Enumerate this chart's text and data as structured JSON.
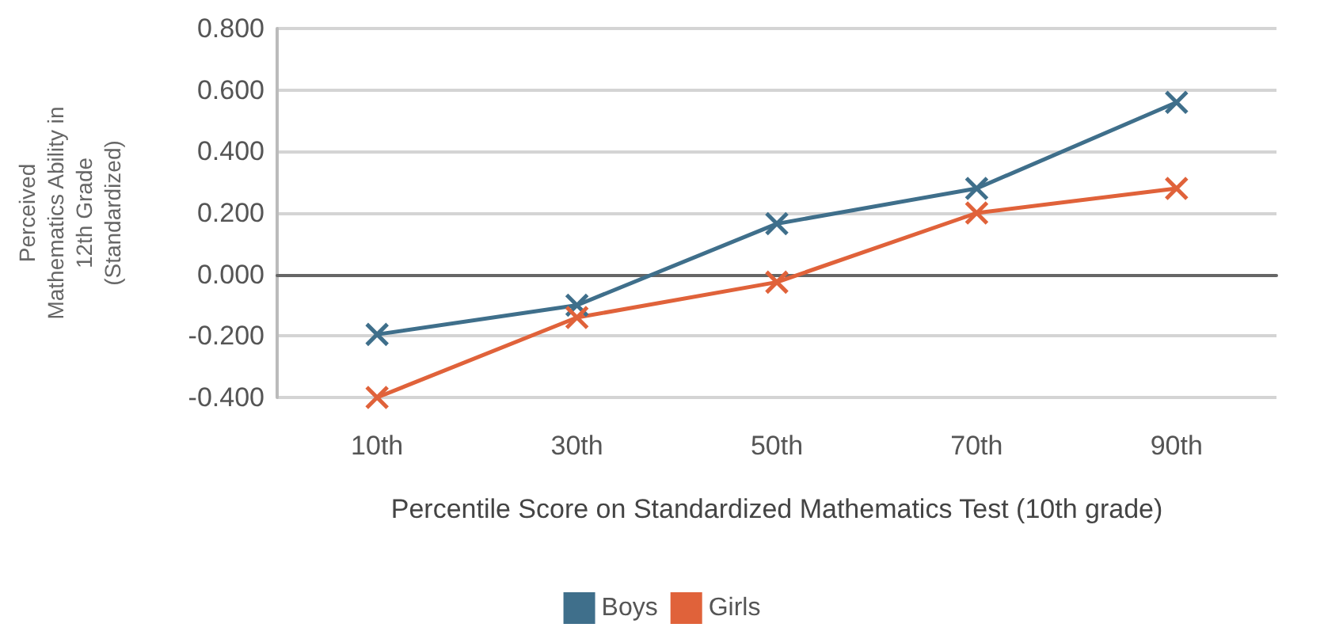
{
  "chart_data": {
    "type": "line",
    "xlabel": "Percentile Score on Standardized Mathematics Test (10th grade)",
    "ylabel": "Perceived\nMathematics Ability in\n12th Grade\n(Standardized)",
    "categories": [
      "10th",
      "30th",
      "50th",
      "70th",
      "90th"
    ],
    "series": [
      {
        "name": "Boys",
        "color": "#3f6f8b",
        "values": [
          -0.195,
          -0.1,
          0.165,
          0.28,
          0.56
        ]
      },
      {
        "name": "Girls",
        "color": "#e0623a",
        "values": [
          -0.4,
          -0.14,
          -0.025,
          0.2,
          0.28
        ]
      }
    ],
    "ylim": [
      -0.4,
      0.8
    ],
    "yticks": [
      {
        "value": -0.4,
        "label": "-0.400"
      },
      {
        "value": -0.2,
        "label": "-0.200"
      },
      {
        "value": 0,
        "label": "0.000"
      },
      {
        "value": 0.2,
        "label": "0.200"
      },
      {
        "value": 0.4,
        "label": "0.400"
      },
      {
        "value": 0.6,
        "label": "0.600"
      },
      {
        "value": 0.8,
        "label": "0.800"
      }
    ],
    "grid": "y",
    "legend": "bottom",
    "marker": "cross",
    "line_style": "solid"
  }
}
